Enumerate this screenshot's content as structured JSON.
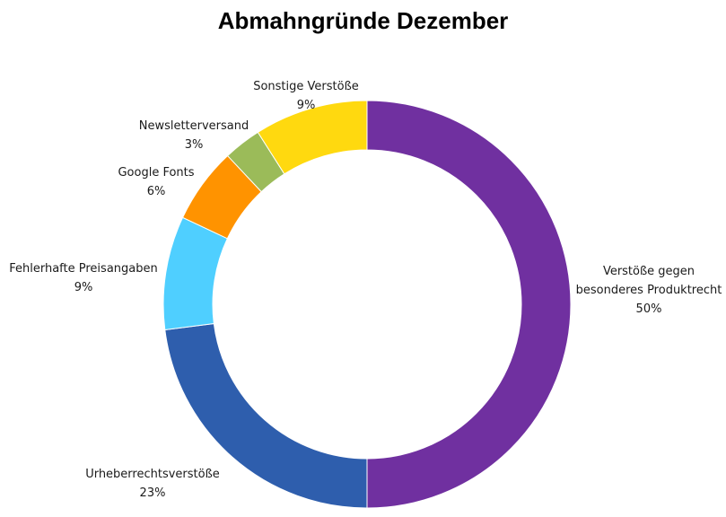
{
  "chart_data": {
    "type": "pie",
    "variant": "donut",
    "title": "Abmahngründe Dezember",
    "slices": [
      {
        "label": [
          "Verstöße gegen",
          "besonderes Produktrecht"
        ],
        "value": 50,
        "pct_label": "50%",
        "color": "#7030A0"
      },
      {
        "label": [
          "Urheberrechtsverstöße"
        ],
        "value": 23,
        "pct_label": "23%",
        "color": "#2E5EAD"
      },
      {
        "label": [
          "Fehlerhafte Preisangaben"
        ],
        "value": 9,
        "pct_label": "9%",
        "color": "#4FCFFF"
      },
      {
        "label": [
          "Google Fonts"
        ],
        "value": 6,
        "pct_label": "6%",
        "color": "#FF9300"
      },
      {
        "label": [
          "Newsletterversand"
        ],
        "value": 3,
        "pct_label": "3%",
        "color": "#9BBB59"
      },
      {
        "label": [
          "Sonstige Verstöße"
        ],
        "value": 9,
        "pct_label": "9%",
        "color": "#FFD90F"
      }
    ],
    "legend": "none"
  }
}
